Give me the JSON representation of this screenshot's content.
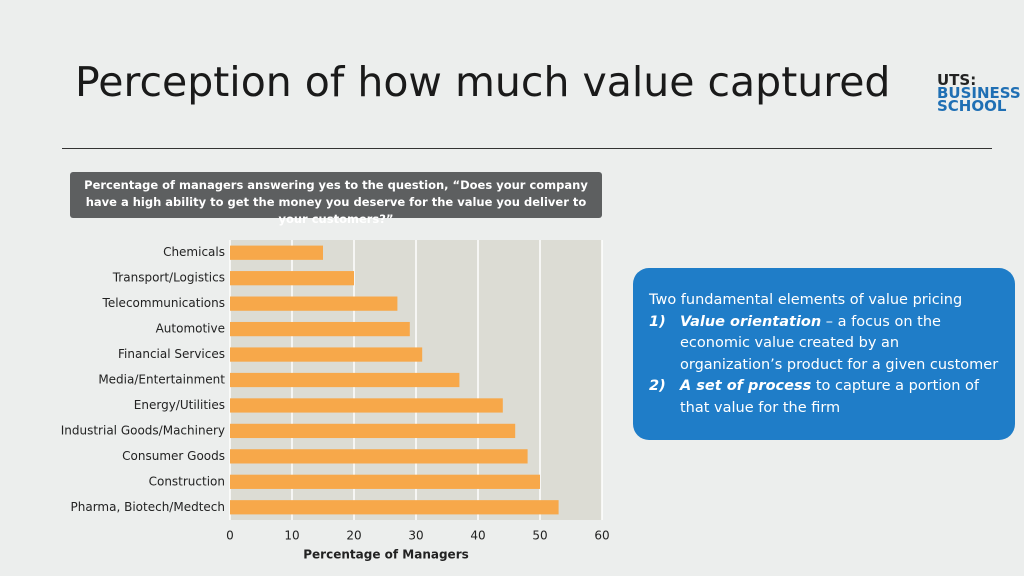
{
  "header": {
    "title": "Perception of how much value captured",
    "logo": [
      "UTS:",
      "BUSINESS",
      "SCHOOL"
    ]
  },
  "chart_data": {
    "type": "bar",
    "orientation": "horizontal",
    "subtitle": "Percentage of managers answering yes to the question, “Does your company have a high ability to get the money you deserve for the value you deliver to your customers?”",
    "categories": [
      "Chemicals",
      "Transport/Logistics",
      "Telecommunications",
      "Automotive",
      "Financial Services",
      "Media/Entertainment",
      "Energy/Utilities",
      "Industrial Goods/Machinery",
      "Consumer Goods",
      "Construction",
      "Pharma, Biotech/Medtech"
    ],
    "values": [
      15,
      20,
      27,
      29,
      31,
      37,
      44,
      46,
      48,
      50,
      53
    ],
    "color": "#f7a84a",
    "xlim": [
      0,
      60
    ],
    "xticks": [
      0,
      10,
      20,
      30,
      40,
      50,
      60
    ],
    "xlabel": "Percentage of Managers",
    "grid": true
  },
  "callout": {
    "heading": "Two fundamental elements of value pricing",
    "items": [
      {
        "number": "1)",
        "term": "Value orientation",
        "text": " – a focus on the economic value created by an organization’s product for a given customer"
      },
      {
        "number": "2)",
        "term": "A set of process",
        "text": " to capture a portion of that value for the firm"
      }
    ]
  }
}
